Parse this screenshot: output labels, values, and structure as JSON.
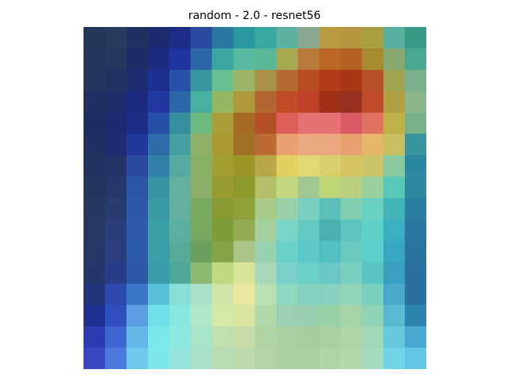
{
  "figure": {
    "title": "random - 2.0 - resnet56"
  },
  "image": {
    "description_name": "heatmap-overlay-image",
    "grid_cols": 16,
    "grid_rows": 16,
    "pixels": [
      [
        "#24365a",
        "#283a5e",
        "#203060",
        "#1c2a70",
        "#1e2c88",
        "#2a4aa0",
        "#2878a0",
        "#2a98a0",
        "#38a8a0",
        "#5eb0a0",
        "#8aa890",
        "#b89a40",
        "#b89640",
        "#a8a040",
        "#5ab0a0",
        "#3a9a88"
      ],
      [
        "#243660",
        "#26385e",
        "#1e2c6a",
        "#1c2a80",
        "#2034a0",
        "#2c68a8",
        "#3aa8a0",
        "#58b8a0",
        "#5ab898",
        "#a8a850",
        "#b87a38",
        "#bc6628",
        "#b46224",
        "#a88a30",
        "#88a870",
        "#48a890"
      ],
      [
        "#243660",
        "#223262",
        "#1e2c70",
        "#1e2e90",
        "#2a50a8",
        "#3a98a0",
        "#66c090",
        "#9ab468",
        "#a89048",
        "#b46a30",
        "#b84e20",
        "#b03c18",
        "#a83814",
        "#ba5028",
        "#a0a450",
        "#7ab08c"
      ],
      [
        "#203060",
        "#1e2e68",
        "#1c2a80",
        "#2238a0",
        "#2a68a8",
        "#48b0a0",
        "#94b660",
        "#ae9a3c",
        "#b06830",
        "#c04c28",
        "#c0402a",
        "#a03018",
        "#9a3020",
        "#c04c2c",
        "#b0a044",
        "#8ab48a"
      ],
      [
        "#1e2e62",
        "#1c2a70",
        "#1e2c88",
        "#2650a8",
        "#36909c",
        "#6cb880",
        "#aa9e38",
        "#a66a24",
        "#b45026",
        "#dc6058",
        "#e47070",
        "#e47070",
        "#d85a64",
        "#e27060",
        "#c0b048",
        "#78b08a"
      ],
      [
        "#203060",
        "#1e2c74",
        "#22389a",
        "#2c6ca8",
        "#44a0a0",
        "#8eb068",
        "#a89a30",
        "#a07024",
        "#bc6a34",
        "#e8a070",
        "#eca880",
        "#eca880",
        "#e8a070",
        "#e4b868",
        "#c8c060",
        "#3a94a0"
      ],
      [
        "#223260",
        "#223468",
        "#2a4aa0",
        "#3080a8",
        "#54aaa0",
        "#8ab068",
        "#a4a030",
        "#9c9424",
        "#b8a848",
        "#e0d060",
        "#e0d870",
        "#d8d06a",
        "#d4c460",
        "#ccc468",
        "#8ac8a0",
        "#2c88a0"
      ],
      [
        "#24365e",
        "#26386a",
        "#2c56a6",
        "#3894a4",
        "#62b0a0",
        "#8cae68",
        "#989c30",
        "#8e9a2c",
        "#b4c068",
        "#c4d880",
        "#a0c890",
        "#c0d478",
        "#b8d07c",
        "#98d0a0",
        "#5ac8b8",
        "#3088a0"
      ],
      [
        "#263862",
        "#283c70",
        "#2e58a8",
        "#3a9aa4",
        "#64b0a0",
        "#7aa860",
        "#889a34",
        "#8ea038",
        "#a8cc88",
        "#9ad0a8",
        "#7ad0c0",
        "#5ac0b8",
        "#80d0b0",
        "#6ad0c0",
        "#42b4b8",
        "#2c7ea0"
      ],
      [
        "#263864",
        "#2a3e78",
        "#2e5aa8",
        "#3aa0a8",
        "#5cb0a0",
        "#76a860",
        "#7c9e38",
        "#94aa50",
        "#a4d0a0",
        "#7ad4c8",
        "#62c8c0",
        "#48b0b0",
        "#60c4c0",
        "#60d0c8",
        "#3ab0c0",
        "#2a78a0"
      ],
      [
        "#263866",
        "#2a3e80",
        "#2e5ca8",
        "#3aa0a8",
        "#56aa98",
        "#6aa05c",
        "#84a444",
        "#a8c488",
        "#98d0b0",
        "#6ad0c8",
        "#5cc8c8",
        "#52c0c0",
        "#6acac0",
        "#5ad0c8",
        "#38a8c0",
        "#2a74a0"
      ],
      [
        "#24366a",
        "#283c88",
        "#2c58a8",
        "#3a9ca8",
        "#4ea898",
        "#8cb870",
        "#c0d880",
        "#d8e498",
        "#a8d8b8",
        "#78d0c8",
        "#6ad0c8",
        "#6ac8c4",
        "#7ad0c0",
        "#5ac4c0",
        "#3aa0c0",
        "#2a70a0"
      ],
      [
        "#22347a",
        "#2e4ab0",
        "#3a78c8",
        "#58c0d8",
        "#86e0d8",
        "#a8e0c8",
        "#d0e4a8",
        "#e8e8a0",
        "#b8e0b0",
        "#8cd8c0",
        "#82d0c0",
        "#88d0c0",
        "#92d4b8",
        "#78d0c0",
        "#4aa8c8",
        "#2a70a0"
      ],
      [
        "#1e3090",
        "#3050c0",
        "#5a9ee0",
        "#70e0e8",
        "#88e8e0",
        "#b0e8c8",
        "#d4e8a8",
        "#d8e4a0",
        "#b0d8a8",
        "#9cd0b0",
        "#98d0b0",
        "#98d0a8",
        "#a4d4a8",
        "#90d4b8",
        "#5ab8d0",
        "#2e84b0"
      ],
      [
        "#2a3cb0",
        "#3e66d0",
        "#64b8e8",
        "#78e8ea",
        "#8ce8e0",
        "#a8e4c8",
        "#c0e0b0",
        "#c8dcaa",
        "#b0d4a4",
        "#a8d0a0",
        "#a8cca0",
        "#a8d0a0",
        "#b0d4a4",
        "#a0d8b8",
        "#68c8dc",
        "#48a8d0"
      ],
      [
        "#3848c0",
        "#4a7ae0",
        "#6ec8ec",
        "#7ce8ec",
        "#94e4dc",
        "#a8e0c8",
        "#b8dcb4",
        "#bcd8ac",
        "#b4d4a8",
        "#acd0a4",
        "#acd0a4",
        "#b0d4a8",
        "#b4d8ac",
        "#a4dcc0",
        "#70d4e8",
        "#60c8e4"
      ]
    ]
  }
}
